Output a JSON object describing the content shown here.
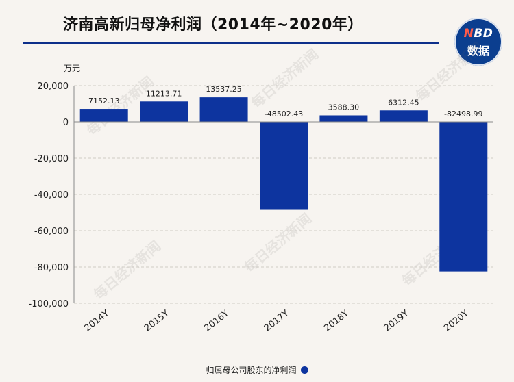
{
  "header": {
    "title": "济南高新归母净利润（2014年~2020年）",
    "logo_line1": "NBD",
    "logo_line2": "数据"
  },
  "chart_data": {
    "type": "bar",
    "title": "济南高新归母净利润（2014年~2020年）",
    "unit": "万元",
    "categories": [
      "2014Y",
      "2015Y",
      "2016Y",
      "2017Y",
      "2018Y",
      "2019Y",
      "2020Y"
    ],
    "series": [
      {
        "name": "归属母公司股东的净利润",
        "values": [
          7152.13,
          11213.71,
          13537.25,
          -48502.43,
          3588.3,
          6312.45,
          -82498.99
        ],
        "labels": [
          "7152.13",
          "11213.71",
          "13537.25",
          "-48502.43",
          "3588.30",
          "6312.45",
          "-82498.99"
        ]
      }
    ],
    "ylim": [
      -100000,
      20000
    ],
    "yticks": [
      20000,
      0,
      -20000,
      -40000,
      -60000,
      -80000,
      -100000
    ],
    "ytick_labels": [
      "20,000",
      "0",
      "-20,000",
      "-40,000",
      "-60,000",
      "-80,000",
      "-100,000"
    ],
    "grid": true,
    "legend_position": "bottom",
    "watermark": "每日经济新闻",
    "colors": {
      "bar": "#0d349f",
      "axis": "#8a8a8a",
      "grid": "#cfcbc5",
      "brand": "#0d2f8a"
    }
  }
}
